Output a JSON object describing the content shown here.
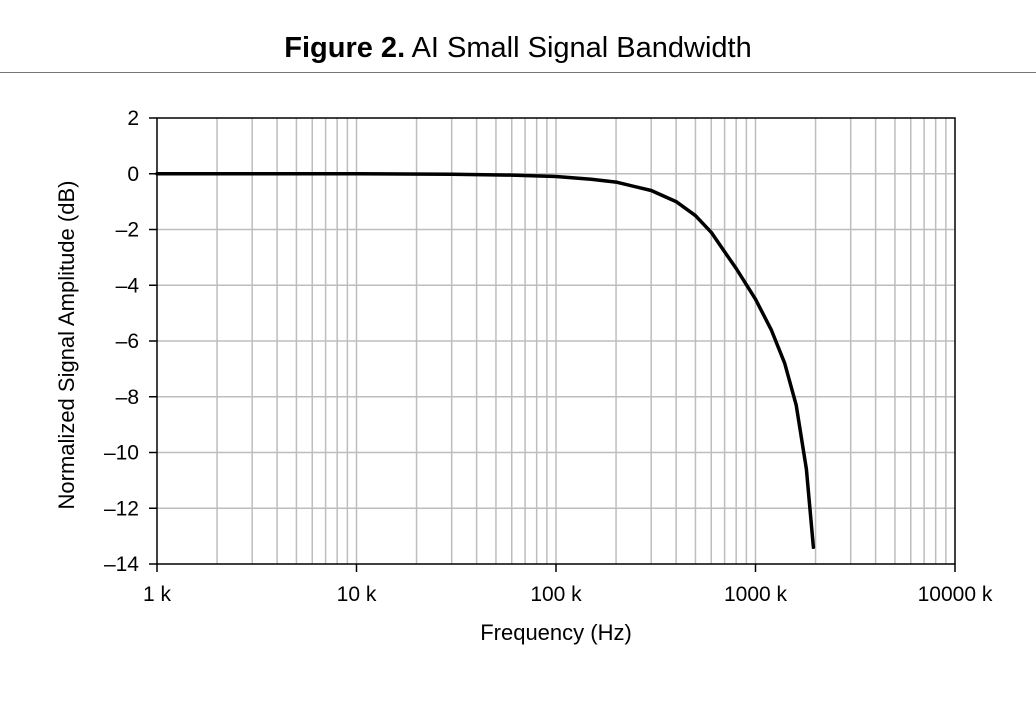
{
  "figure": {
    "number": "Figure 2.",
    "title": "AI Small Signal Bandwidth"
  },
  "chart_data": {
    "type": "line",
    "title": "Figure 2. AI Small Signal Bandwidth",
    "xlabel": "Frequency (Hz)",
    "ylabel": "Normalized Signal Amplitude (dB)",
    "xscale": "log",
    "xlim": [
      1000,
      10000000
    ],
    "ylim": [
      -14,
      2
    ],
    "grid": true,
    "x_ticks": [
      1000,
      10000,
      100000,
      1000000,
      10000000
    ],
    "x_tick_labels": [
      "1 k",
      "10 k",
      "100 k",
      "1000 k",
      "10000 k"
    ],
    "y_ticks": [
      2,
      0,
      -2,
      -4,
      -6,
      -8,
      -10,
      -12,
      -14
    ],
    "y_tick_labels": [
      "2",
      "0",
      "–2",
      "–4",
      "–6",
      "–8",
      "–10",
      "–12",
      "–14"
    ],
    "series": [
      {
        "color": "#000000",
        "x": [
          1000,
          10000,
          30000,
          60000,
          100000,
          150000,
          200000,
          300000,
          400000,
          500000,
          600000,
          700000,
          800000,
          1000000,
          1200000,
          1400000,
          1600000,
          1800000,
          1950000
        ],
        "y": [
          0,
          0,
          -0.02,
          -0.05,
          -0.1,
          -0.2,
          -0.3,
          -0.6,
          -1.0,
          -1.5,
          -2.1,
          -2.8,
          -3.4,
          -4.5,
          -5.6,
          -6.8,
          -8.3,
          -10.6,
          -13.4
        ]
      }
    ]
  }
}
